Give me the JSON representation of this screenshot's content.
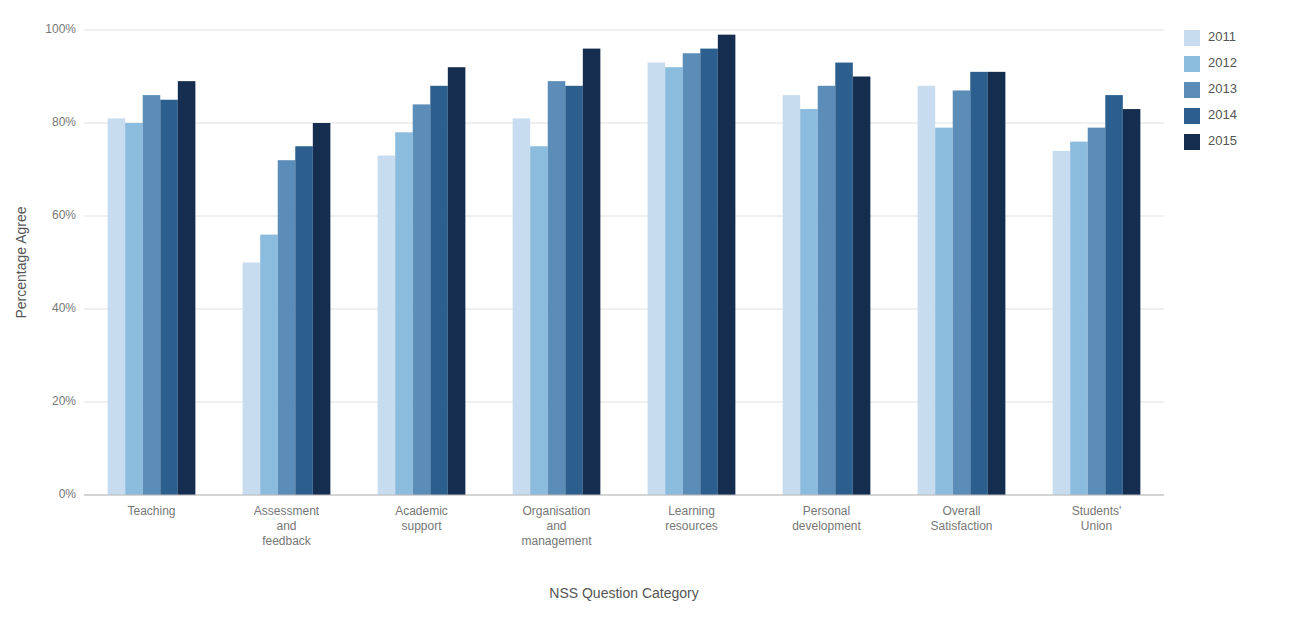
{
  "chart_data": {
    "type": "bar",
    "categories": [
      "Teaching",
      "Assessment\nand\nfeedback",
      "Academic\nsupport",
      "Organisation\nand\nmanagement",
      "Learning\nresources",
      "Personal\ndevelopment",
      "Overall\nSatisfaction",
      "Students'\nUnion"
    ],
    "series": [
      {
        "name": "2011",
        "color": "#C8DCF0",
        "values": [
          81,
          50,
          73,
          81,
          93,
          86,
          88,
          74
        ]
      },
      {
        "name": "2012",
        "color": "#8BBCDD",
        "values": [
          80,
          56,
          78,
          75,
          92,
          83,
          79,
          76
        ]
      },
      {
        "name": "2013",
        "color": "#5B8DB8",
        "values": [
          86,
          72,
          84,
          89,
          95,
          88,
          87,
          79
        ]
      },
      {
        "name": "2014",
        "color": "#2D5F8E",
        "values": [
          85,
          75,
          88,
          88,
          96,
          93,
          91,
          86
        ]
      },
      {
        "name": "2015",
        "color": "#152D4E",
        "values": [
          89,
          80,
          92,
          96,
          99,
          90,
          91,
          83
        ]
      }
    ],
    "xlabel": "NSS Question Category",
    "ylabel": "Percentage Agree",
    "ylim": [
      0,
      100
    ],
    "yticks": [
      {
        "value": 0,
        "label": "0%"
      },
      {
        "value": 20,
        "label": "20%"
      },
      {
        "value": 40,
        "label": "40%"
      },
      {
        "value": 60,
        "label": "60%"
      },
      {
        "value": 80,
        "label": "80%"
      },
      {
        "value": 100,
        "label": "100%"
      }
    ],
    "grid": true,
    "legend": "right"
  }
}
